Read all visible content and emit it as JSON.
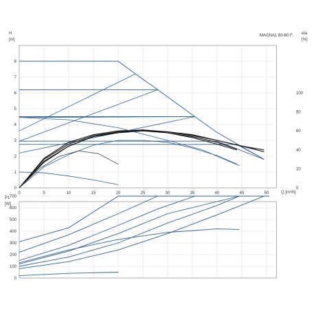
{
  "chart_data": [
    {
      "type": "line",
      "name": "head-and-efficiency",
      "model_label": "MAGNA1 80-60 F",
      "ylabel_left": "H",
      "ylabel_left_unit": "[m]",
      "ylabel_right": "eta",
      "ylabel_right_unit": "[%]",
      "xlabel": "Q [m³/h]",
      "xlim": [
        0,
        50
      ],
      "ylim_left": [
        0,
        9
      ],
      "ylim_right": [
        0,
        100
      ],
      "xticks": [
        "0",
        "5",
        "10",
        "15",
        "20",
        "25",
        "30",
        "35",
        "40",
        "45",
        "50"
      ],
      "yticks_left": [
        "0",
        "1",
        "2",
        "3",
        "4",
        "5",
        "6",
        "7",
        "8"
      ],
      "yticks_right": [
        "0",
        "20",
        "40",
        "60",
        "80",
        "100"
      ],
      "grid": true,
      "head_curves": [
        {
          "points": [
            [
              0,
              8
            ],
            [
              20,
              8
            ],
            [
              23.5,
              7.2
            ],
            [
              28,
              6.2
            ],
            [
              35.5,
              4.5
            ],
            [
              40,
              3.5
            ],
            [
              49.5,
              1.8
            ]
          ]
        },
        {
          "points": [
            [
              0,
              6.2
            ],
            [
              28,
              6.2
            ]
          ]
        },
        {
          "points": [
            [
              0,
              4.5
            ],
            [
              35.5,
              4.5
            ]
          ]
        },
        {
          "points": [
            [
              0,
              2.95
            ],
            [
              40,
              2.95
            ],
            [
              49.5,
              1.8
            ]
          ]
        },
        {
          "points": [
            [
              0,
              2.75
            ],
            [
              44,
              2.75
            ],
            [
              49.5,
              1.8
            ]
          ]
        }
      ],
      "system_curves": [
        {
          "points": [
            [
              0,
              3.6
            ],
            [
              23.5,
              7.2
            ]
          ]
        },
        {
          "points": [
            [
              0,
              2.95
            ],
            [
              28,
              6.2
            ]
          ]
        },
        {
          "points": [
            [
              0,
              2.2
            ],
            [
              35.5,
              4.5
            ]
          ]
        },
        {
          "points": [
            [
              0,
              4.45
            ],
            [
              35.5,
              4.5
            ]
          ]
        }
      ],
      "efficiency_curves": [
        {
          "points": [
            [
              0,
              0
            ],
            [
              5,
              28
            ],
            [
              10,
              44
            ],
            [
              15,
              54
            ],
            [
              20,
              58
            ],
            [
              25,
              60
            ],
            [
              30,
              59
            ],
            [
              35,
              56
            ],
            [
              40,
              50
            ],
            [
              45,
              44
            ],
            [
              49.5,
              38
            ]
          ]
        },
        {
          "points": [
            [
              0,
              0
            ],
            [
              5,
              30
            ],
            [
              10,
              46
            ],
            [
              15,
              55
            ],
            [
              20,
              59
            ],
            [
              25,
              60
            ],
            [
              30,
              58
            ],
            [
              35,
              54
            ],
            [
              40,
              48
            ],
            [
              44,
              41
            ]
          ]
        },
        {
          "points": [
            [
              0,
              0
            ],
            [
              5,
              27
            ],
            [
              10,
              44
            ],
            [
              15,
              54
            ],
            [
              20,
              59
            ],
            [
              25,
              61
            ],
            [
              30,
              59
            ],
            [
              35,
              55
            ],
            [
              40,
              50
            ],
            [
              45,
              44
            ],
            [
              49.5,
              40
            ]
          ]
        },
        {
          "points": [
            [
              0,
              0
            ],
            [
              5,
              31
            ],
            [
              10,
              48
            ],
            [
              15,
              56
            ],
            [
              20,
              60
            ],
            [
              25,
              61
            ],
            [
              30,
              58
            ],
            [
              35,
              53
            ],
            [
              40,
              46
            ],
            [
              44,
              40
            ]
          ]
        },
        {
          "points": [
            [
              0,
              0
            ],
            [
              5,
              22
            ],
            [
              10,
              35
            ],
            [
              15,
              45
            ],
            [
              20,
              50
            ],
            [
              25,
              50
            ],
            [
              30,
              48
            ],
            [
              35,
              42
            ],
            [
              40,
              34
            ],
            [
              44,
              25
            ]
          ]
        },
        {
          "points": [
            [
              0,
              0
            ],
            [
              4,
              20
            ],
            [
              8,
              33
            ],
            [
              12,
              39
            ],
            [
              16,
              36
            ],
            [
              20,
              25
            ]
          ]
        },
        {
          "points": [
            [
              0,
              4.45
            ],
            [
              10,
              4.3
            ],
            [
              20,
              3.8
            ],
            [
              30,
              3
            ],
            [
              37,
              2.4
            ],
            [
              44.5,
              1.4
            ]
          ]
        },
        {
          "points": [
            [
              0,
              1
            ],
            [
              5,
              0.95
            ],
            [
              10,
              0.75
            ],
            [
              15,
              0.5
            ],
            [
              20,
              0.2
            ]
          ]
        }
      ]
    },
    {
      "type": "line",
      "name": "power",
      "ylabel": "P1",
      "ylabel_unit": "[W]",
      "xlim": [
        0,
        50
      ],
      "ylim": [
        0,
        750
      ],
      "yticks": [
        "0",
        "100",
        "200",
        "300",
        "400",
        "500",
        "600",
        "700"
      ],
      "grid": true,
      "series": [
        {
          "points": [
            [
              0,
              310
            ],
            [
              10,
              430
            ],
            [
              20,
              700
            ],
            [
              50.5,
              700
            ]
          ]
        },
        {
          "points": [
            [
              0,
              220
            ],
            [
              10,
              370
            ],
            [
              20,
              550
            ],
            [
              28,
              700
            ]
          ]
        },
        {
          "points": [
            [
              0,
              150
            ],
            [
              10,
              280
            ],
            [
              20,
              450
            ],
            [
              28,
              590
            ],
            [
              35.5,
              700
            ]
          ]
        },
        {
          "points": [
            [
              0,
              120
            ],
            [
              10,
              230
            ],
            [
              20,
              380
            ],
            [
              30,
              550
            ],
            [
              44.5,
              700
            ]
          ]
        },
        {
          "points": [
            [
              0,
              100
            ],
            [
              10,
              180
            ],
            [
              20,
              300
            ],
            [
              30,
              470
            ],
            [
              40,
              620
            ],
            [
              44.5,
              700
            ]
          ]
        },
        {
          "points": [
            [
              0,
              80
            ],
            [
              10,
              140
            ],
            [
              20,
              240
            ],
            [
              30,
              380
            ],
            [
              40,
              540
            ],
            [
              49.5,
              700
            ]
          ]
        },
        {
          "points": [
            [
              0,
              130
            ],
            [
              10,
              240
            ],
            [
              20,
              330
            ],
            [
              30,
              390
            ],
            [
              40,
              420
            ],
            [
              44.5,
              415
            ]
          ]
        },
        {
          "points": [
            [
              0,
              20
            ],
            [
              10,
              40
            ],
            [
              20,
              50
            ]
          ]
        }
      ]
    }
  ]
}
